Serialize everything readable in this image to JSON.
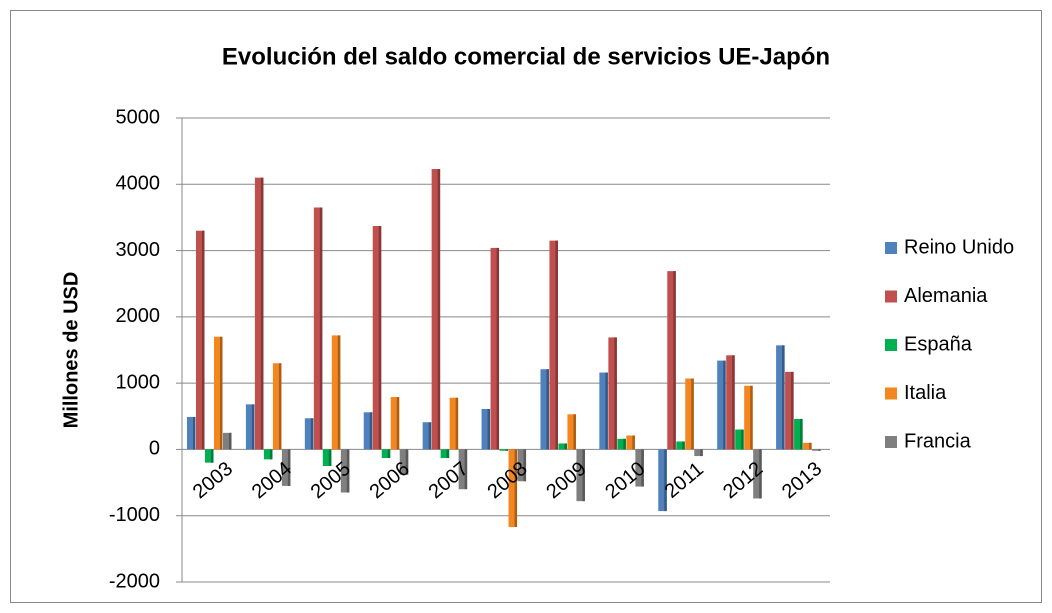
{
  "chart_data": {
    "type": "bar",
    "title": "Evolución del saldo comercial de servicios UE-Japón",
    "y_label": "Millones de USD",
    "categories": [
      "2003",
      "2004",
      "2005",
      "2006",
      "2007",
      "2008",
      "2009",
      "2010",
      "2011",
      "2012",
      "2013"
    ],
    "series": [
      {
        "name": "Reino Unido",
        "color": "#4f81bd",
        "values": [
          490,
          680,
          470,
          560,
          410,
          610,
          1210,
          1160,
          -930,
          1340,
          1570
        ]
      },
      {
        "name": "Alemania",
        "color": "#c0504d",
        "values": [
          3300,
          4100,
          3650,
          3370,
          4230,
          3040,
          3150,
          1690,
          2690,
          1420,
          1170
        ]
      },
      {
        "name": "España",
        "color": "#00b050",
        "values": [
          -200,
          -150,
          -250,
          -130,
          -130,
          -20,
          90,
          160,
          120,
          300,
          460
        ]
      },
      {
        "name": "Italia",
        "color": "#f4861f",
        "values": [
          1700,
          1300,
          1720,
          790,
          780,
          -1170,
          530,
          210,
          1070,
          960,
          100
        ]
      },
      {
        "name": "Francia",
        "color": "#7f7f7f",
        "values": [
          250,
          -550,
          -650,
          -380,
          -600,
          -480,
          -780,
          -560,
          -100,
          -740,
          -20
        ]
      }
    ],
    "ylim": [
      -2000,
      5000
    ],
    "yticks": [
      -2000,
      -1000,
      0,
      1000,
      2000,
      3000,
      4000,
      5000
    ],
    "grid": true,
    "legend": "right"
  }
}
